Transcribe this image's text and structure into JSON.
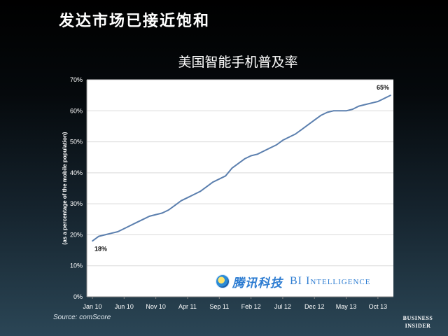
{
  "headline": "发达市场已接近饱和",
  "watermark": {
    "brand_cn": "腾讯科技",
    "brand_en": "BI Intelligence"
  },
  "source": "Source: comScore",
  "logo": {
    "line1": "BUSINESS",
    "line2": "INSIDER"
  },
  "chart_data": {
    "type": "line",
    "title": "美国智能手机普及率",
    "ylabel": "(as a percentage of the mobile population)",
    "xlabel": "",
    "ylim": [
      0,
      70
    ],
    "yticks": [
      "0%",
      "10%",
      "20%",
      "30%",
      "40%",
      "50%",
      "60%",
      "70%"
    ],
    "xticks": [
      "Jan 10",
      "Jun 10",
      "Nov 10",
      "Apr 11",
      "Sep 11",
      "Feb 12",
      "Jul 12",
      "Dec 12",
      "May 13",
      "Oct 13"
    ],
    "grid": "horizontal",
    "x": [
      "2010-01",
      "2010-02",
      "2010-03",
      "2010-04",
      "2010-05",
      "2010-06",
      "2010-07",
      "2010-08",
      "2010-09",
      "2010-10",
      "2010-11",
      "2010-12",
      "2011-01",
      "2011-02",
      "2011-03",
      "2011-04",
      "2011-05",
      "2011-06",
      "2011-07",
      "2011-08",
      "2011-09",
      "2011-10",
      "2011-11",
      "2011-12",
      "2012-01",
      "2012-02",
      "2012-03",
      "2012-04",
      "2012-05",
      "2012-06",
      "2012-07",
      "2012-08",
      "2012-09",
      "2012-10",
      "2012-11",
      "2012-12",
      "2013-01",
      "2013-02",
      "2013-03",
      "2013-04",
      "2013-05",
      "2013-06",
      "2013-07",
      "2013-08",
      "2013-09",
      "2013-10",
      "2013-11",
      "2013-12"
    ],
    "series": [
      {
        "values": [
          18,
          19.5,
          20,
          20.5,
          21,
          22,
          23,
          24,
          25,
          26,
          26.5,
          27,
          28,
          29.5,
          31,
          32,
          33,
          34,
          35.5,
          37,
          38,
          39,
          41.5,
          43,
          44.5,
          45.5,
          46,
          47,
          48,
          49,
          50.5,
          51.5,
          52.5,
          54,
          55.5,
          57,
          58.5,
          59.5,
          60,
          60,
          60,
          60.5,
          61.5,
          62,
          62.5,
          63,
          64,
          65
        ],
        "color": "#5b7fae"
      }
    ],
    "annotations": [
      {
        "label": "18%",
        "point": "first"
      },
      {
        "label": "65%",
        "point": "last"
      }
    ]
  }
}
